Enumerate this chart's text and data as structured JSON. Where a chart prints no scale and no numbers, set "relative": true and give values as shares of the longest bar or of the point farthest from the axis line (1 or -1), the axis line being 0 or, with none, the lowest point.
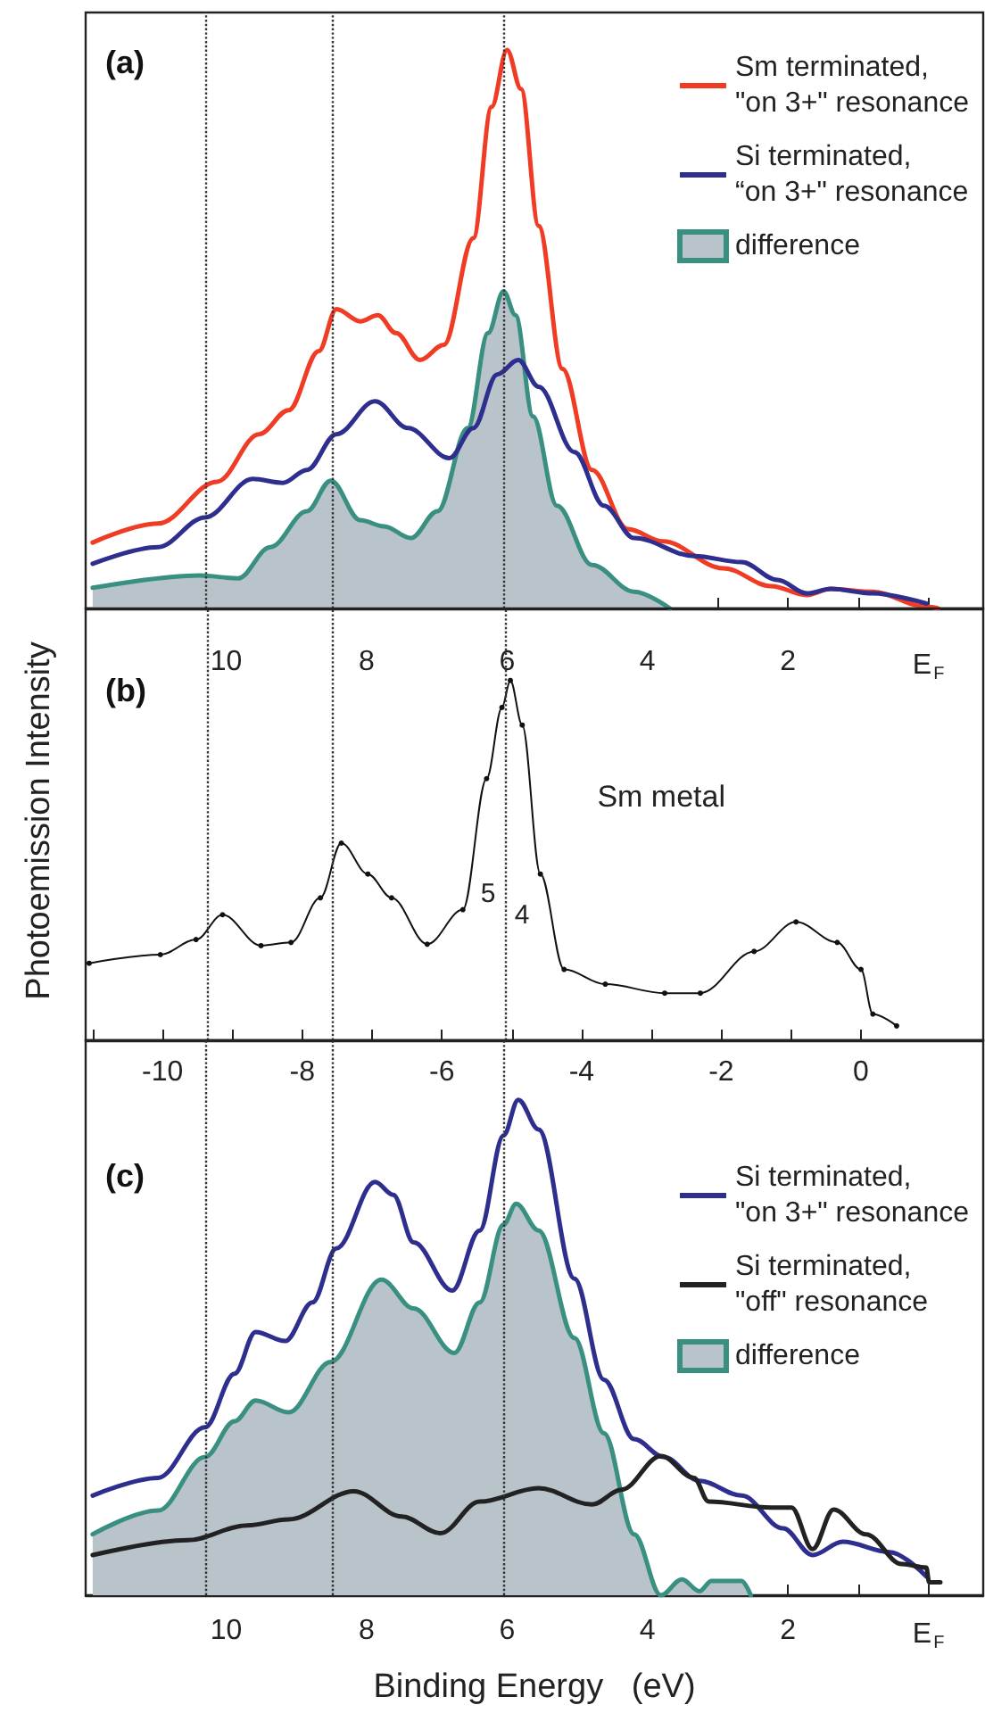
{
  "chart_data": [
    {
      "type": "line",
      "title": "(a)",
      "relative": true,
      "tick_labels": "x",
      "legend": "top right",
      "xlim": [
        12,
        -0.78
      ],
      "xticks": [
        {
          "value": 11,
          "label": null
        },
        10,
        {
          "value": 9,
          "label": null
        },
        8,
        {
          "value": 7,
          "label": null
        },
        6,
        {
          "value": 5,
          "label": null
        },
        4,
        {
          "value": 3,
          "label": null
        },
        2,
        {
          "value": 1,
          "label": null
        },
        {
          "value": 0,
          "label": "E$_{F}$"
        }
      ],
      "ref_lines": [
        {
          "axis": "x",
          "value": 10.3,
          "line_style": "dotted",
          "color": "#333333"
        },
        {
          "axis": "x",
          "value": 8.5,
          "line_style": "dotted",
          "color": "#333333"
        },
        {
          "axis": "x",
          "value": 6.05,
          "line_style": "dotted",
          "color": "#333333"
        }
      ],
      "series": [
        {
          "name": "Sm terminated,\n\"on 3+\" resonance",
          "color": "#f03c24",
          "x": [
            11.9,
            10.97,
            10.13,
            9.53,
            9.11,
            8.68,
            8.43,
            8.09,
            7.84,
            7.58,
            7.24,
            6.9,
            6.48,
            6.22,
            6.0,
            5.8,
            5.55,
            5.21,
            4.79,
            4.28,
            3.78,
            2.92,
            2.24,
            1.73,
            1.39,
            0.8,
            0.03,
            -0.14
          ],
          "values": [
            0.118,
            0.152,
            0.227,
            0.312,
            0.355,
            0.461,
            0.536,
            0.514,
            0.525,
            0.493,
            0.445,
            0.472,
            0.663,
            0.898,
            1.0,
            0.93,
            0.685,
            0.429,
            0.248,
            0.142,
            0.12,
            0.072,
            0.04,
            0.024,
            0.035,
            0.03,
            0.003,
            0
          ]
        },
        {
          "name": "Si terminated,\n“on 3+\" resonance",
          "color": "#2e2e8f",
          "x": [
            11.9,
            10.97,
            10.3,
            9.62,
            9.19,
            8.85,
            8.43,
            7.88,
            7.41,
            6.82,
            6.48,
            6.14,
            5.84,
            5.55,
            5.04,
            4.62,
            4.19,
            3.34,
            2.66,
            2.15,
            1.73,
            1.39,
            0.8,
            0.03
          ],
          "values": [
            0.08,
            0.11,
            0.163,
            0.232,
            0.225,
            0.248,
            0.312,
            0.371,
            0.323,
            0.269,
            0.323,
            0.419,
            0.445,
            0.397,
            0.28,
            0.184,
            0.126,
            0.094,
            0.083,
            0.051,
            0.027,
            0.035,
            0.027,
            0.009
          ]
        },
        {
          "name": "difference",
          "type": "area",
          "color": "#3a9080",
          "x": [
            11.9,
            10.38,
            9.83,
            9.37,
            8.85,
            8.51,
            8.09,
            7.75,
            7.37,
            6.99,
            6.56,
            6.27,
            6.05,
            5.88,
            5.63,
            5.29,
            4.79,
            4.19,
            3.68
          ],
          "values": [
            0.037,
            0.059,
            0.054,
            0.11,
            0.174,
            0.229,
            0.158,
            0.147,
            0.126,
            0.174,
            0.323,
            0.493,
            0.568,
            0.525,
            0.344,
            0.184,
            0.078,
            0.03,
            0
          ]
        }
      ]
    },
    {
      "type": "line",
      "title": "(b)",
      "ylabel": "Photoemission Intensity",
      "relative": true,
      "tick_labels": "x",
      "marker": "circle",
      "xlim": [
        -11.1,
        1.75
      ],
      "xticks": [
        {
          "value": -11,
          "label": null
        },
        -10,
        {
          "value": -9,
          "label": null
        },
        -8,
        {
          "value": -7,
          "label": null
        },
        -6,
        {
          "value": -5,
          "label": null
        },
        -4,
        {
          "value": -3,
          "label": null
        },
        -2,
        {
          "value": -1,
          "label": null
        },
        0
      ],
      "ref_lines": [
        {
          "axis": "x",
          "value": -9.35,
          "line_style": "dotted",
          "color": "#333333"
        },
        {
          "axis": "x",
          "value": -7.57,
          "line_style": "dotted",
          "color": "#333333"
        },
        {
          "axis": "x",
          "value": -5.1,
          "line_style": "dotted",
          "color": "#333333"
        }
      ],
      "annotations": [
        "Sm metal",
        "5",
        "4"
      ],
      "series": [
        {
          "color": "#111111",
          "x": [
            -11.05,
            -10.03,
            -9.52,
            -9.14,
            -8.59,
            -8.16,
            -7.74,
            -7.44,
            -7.06,
            -6.72,
            -6.21,
            -5.7,
            -5.36,
            -5.14,
            -5.02,
            -4.85,
            -4.59,
            -4.25,
            -3.66,
            -2.81,
            -2.3,
            -1.53,
            -0.93,
            -0.34,
            0,
            0.17,
            0.51
          ],
          "values": [
            0.214,
            0.238,
            0.28,
            0.349,
            0.263,
            0.272,
            0.396,
            0.548,
            0.462,
            0.396,
            0.267,
            0.363,
            0.727,
            0.925,
            1.0,
            0.876,
            0.462,
            0.197,
            0.156,
            0.131,
            0.131,
            0.247,
            0.329,
            0.272,
            0.197,
            0.073,
            0.04
          ]
        }
      ]
    },
    {
      "type": "line",
      "title": "(c)",
      "xlabel": "Binding Energy   (eV)",
      "relative": true,
      "tick_labels": "x",
      "legend": "top right",
      "xlim": [
        12,
        -0.78
      ],
      "xticks": [
        {
          "value": 11,
          "label": null
        },
        10,
        {
          "value": 9,
          "label": null
        },
        8,
        {
          "value": 7,
          "label": null
        },
        6,
        {
          "value": 5,
          "label": null
        },
        4,
        {
          "value": 3,
          "label": null
        },
        2,
        {
          "value": 1,
          "label": null
        },
        {
          "value": 0,
          "label": "E$_{F}$"
        }
      ],
      "ref_lines": [
        {
          "axis": "x",
          "value": 10.3,
          "line_style": "dotted",
          "color": "#333333"
        },
        {
          "axis": "x",
          "value": 8.5,
          "line_style": "dotted",
          "color": "#333333"
        },
        {
          "axis": "x",
          "value": 6.05,
          "line_style": "dotted",
          "color": "#333333"
        }
      ],
      "series": [
        {
          "name": "Si terminated,\n\"on 3+\" resonance",
          "color": "#2e2e8f",
          "x": [
            11.9,
            10.97,
            10.3,
            9.88,
            9.58,
            9.16,
            8.77,
            8.43,
            7.88,
            7.62,
            7.33,
            6.78,
            6.39,
            6.05,
            5.84,
            5.55,
            5.04,
            4.62,
            4.19,
            3.77,
            3.26,
            2.66,
            2.07,
            1.65,
            1.22,
            0.55,
            0.03
          ],
          "values": [
            0.201,
            0.237,
            0.339,
            0.447,
            0.531,
            0.513,
            0.591,
            0.7,
            0.834,
            0.808,
            0.712,
            0.615,
            0.736,
            0.928,
            1.0,
            0.94,
            0.639,
            0.435,
            0.315,
            0.279,
            0.231,
            0.201,
            0.135,
            0.081,
            0.108,
            0.087,
            0.038
          ]
        },
        {
          "name": "Si terminated,\n\"off\" resonance",
          "color": "#222222",
          "x": [
            11.9,
            10.55,
            9.7,
            9.11,
            8.18,
            7.5,
            6.95,
            6.39,
            5.55,
            4.79,
            4.37,
            3.81,
            3.34,
            3.13,
            2.24,
            1.95,
            1.65,
            1.35,
            0.89,
            0.38,
            0.03,
            -0.01,
            -0.17
          ],
          "values": [
            0.081,
            0.111,
            0.141,
            0.153,
            0.21,
            0.159,
            0.125,
            0.189,
            0.216,
            0.183,
            0.213,
            0.281,
            0.237,
            0.189,
            0.177,
            0.177,
            0.093,
            0.173,
            0.123,
            0.063,
            0.056,
            0.026,
            0.026
          ]
        },
        {
          "name": "difference",
          "type": "area",
          "color": "#3a9080",
          "x": [
            11.9,
            10.97,
            10.3,
            9.88,
            9.58,
            9.11,
            8.51,
            7.79,
            7.33,
            6.75,
            6.39,
            6.05,
            5.87,
            5.55,
            5.04,
            4.62,
            4.19,
            3.81,
            3.51,
            3.26,
            3.09,
            2.66,
            2.53
          ],
          "values": [
            0.123,
            0.171,
            0.279,
            0.351,
            0.393,
            0.369,
            0.471,
            0.637,
            0.579,
            0.489,
            0.591,
            0.748,
            0.79,
            0.736,
            0.519,
            0.327,
            0.123,
            0,
            0.032,
            0.008,
            0.029,
            0.029,
            0
          ]
        }
      ]
    }
  ]
}
